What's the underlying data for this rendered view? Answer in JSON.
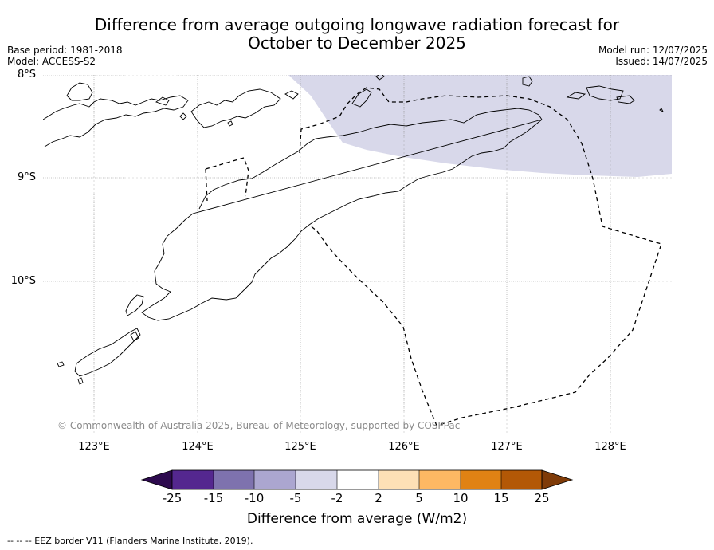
{
  "title_line1": "Difference from average outgoing longwave radiation forecast for",
  "title_line2": "October to December 2025",
  "base_period": "Base period: 1981-2018",
  "model": "Model: ACCESS-S2",
  "model_run": "Model run: 12/07/2025",
  "issued": "Issued: 14/07/2025",
  "latitude_labels": [
    "8°S",
    "9°S",
    "10°S"
  ],
  "longitude_labels": [
    "123°E",
    "124°E",
    "125°E",
    "126°E",
    "127°E",
    "128°E"
  ],
  "copyright": "© Commonwealth of Australia 2025, Bureau of Meteorology, supported by COSPPac",
  "colorbar": {
    "label": "Difference from average (W/m2)",
    "ticks": [
      "-25",
      "-15",
      "-10",
      "-5",
      "-2",
      "2",
      "5",
      "10",
      "15",
      "25"
    ],
    "colors": [
      "#2d0a4e",
      "#54278f",
      "#7e72ae",
      "#aba6d0",
      "#d8d8ea",
      "#ffffff",
      "#fde0b6",
      "#fdb863",
      "#e08214",
      "#b35806",
      "#7f3b08"
    ]
  },
  "eez_note": "--  --  -- EEZ border V11 (Flanders Marine Institute, 2019).",
  "forecast_shading": {
    "category": "-5 to -2",
    "color": "#d8d8ea"
  }
}
